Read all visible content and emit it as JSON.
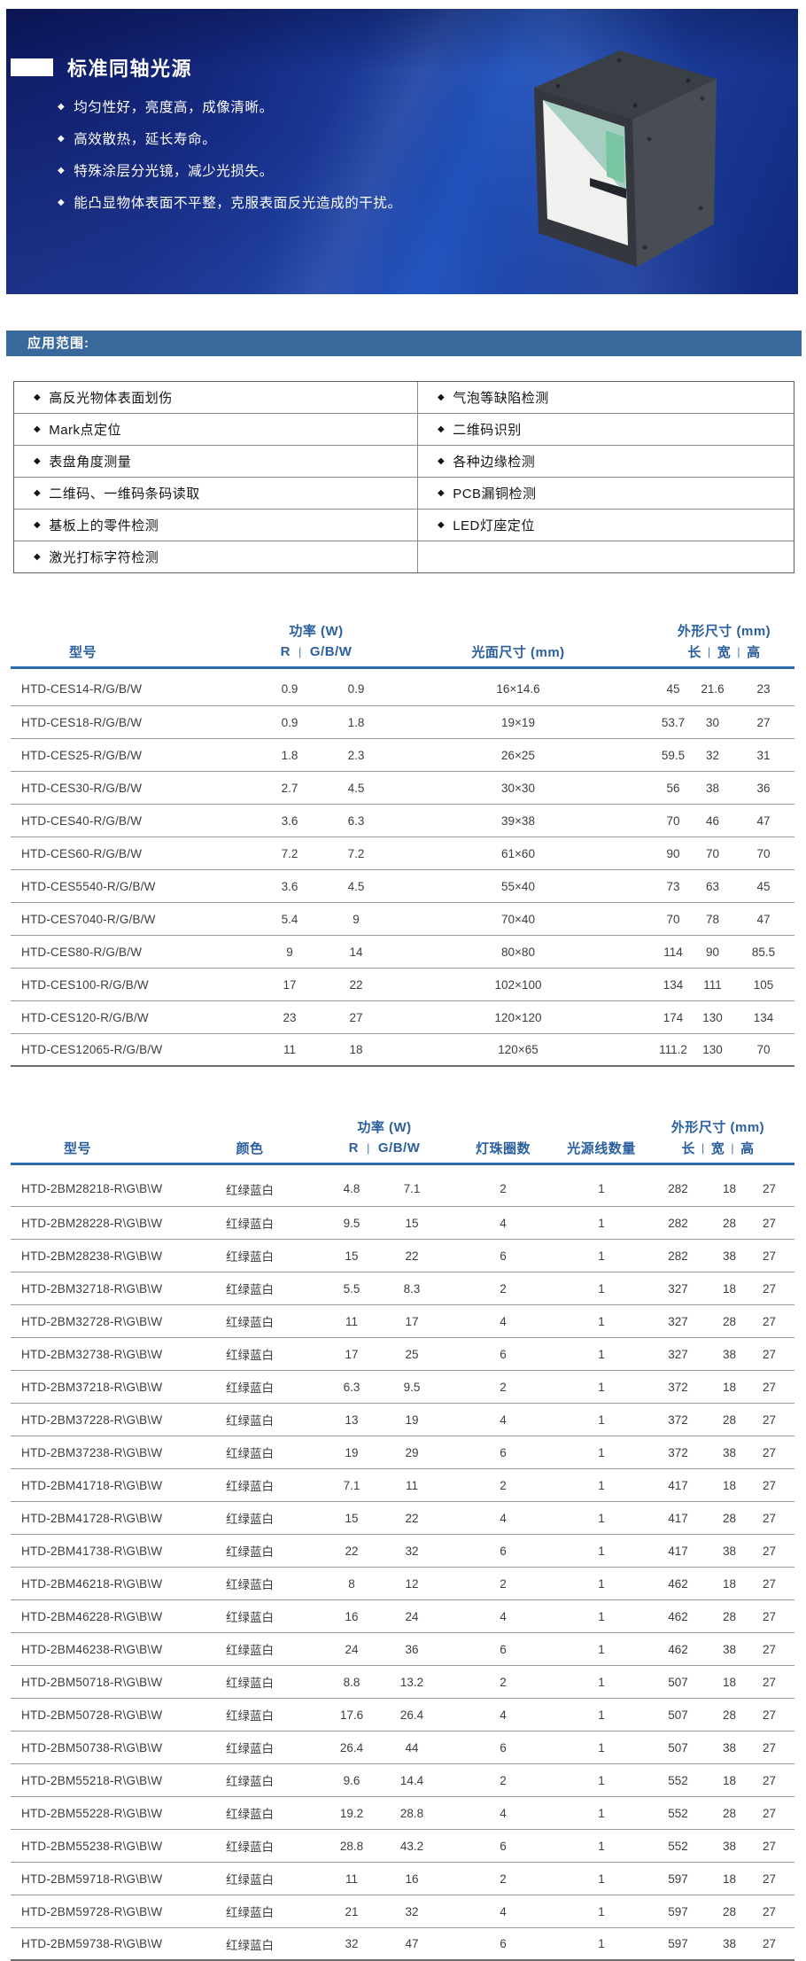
{
  "icons": {
    "bullet": "◆",
    "pipe": "|"
  },
  "colors": {
    "banner_deep": "#0e1a62",
    "banner_bright": "#2052bb",
    "section_bar": "#39689a",
    "table_header_text": "#2b5f9e",
    "header_rule": "#2c6cae"
  },
  "banner": {
    "title": "标准同轴光源",
    "bullets": [
      "均匀性好，亮度高，成像清晰。",
      "高效散热，延长寿命。",
      "特殊涂层分光镜，减少光损失。",
      "能凸显物体表面不平整，克服表面反光造成的干扰。"
    ],
    "product_image": "coaxial-light-cube"
  },
  "app_section": {
    "header": "应用范围:",
    "rows": [
      [
        "高反光物体表面划伤",
        "气泡等缺陷检测"
      ],
      [
        "Mark点定位",
        "二维码识别"
      ],
      [
        "表盘角度测量",
        "各种边缘检测"
      ],
      [
        "二维码、一维码条码读取",
        "PCB漏铜检测"
      ],
      [
        "基板上的零件检测",
        "LED灯座定位"
      ],
      [
        "激光打标字符检测",
        ""
      ]
    ]
  },
  "table1": {
    "headers": {
      "model": "型号",
      "power_group": "功率 (W)",
      "r": "R",
      "gbw": "G/B/W",
      "face": "光面尺寸 (mm)",
      "dim_group": "外形尺寸 (mm)",
      "len": "长",
      "wid": "宽",
      "hei": "高"
    },
    "rows": [
      [
        "HTD-CES14-R/G/B/W",
        "0.9",
        "0.9",
        "16×14.6",
        "45",
        "21.6",
        "23"
      ],
      [
        "HTD-CES18-R/G/B/W",
        "0.9",
        "1.8",
        "19×19",
        "53.7",
        "30",
        "27"
      ],
      [
        "HTD-CES25-R/G/B/W",
        "1.8",
        "2.3",
        "26×25",
        "59.5",
        "32",
        "31"
      ],
      [
        "HTD-CES30-R/G/B/W",
        "2.7",
        "4.5",
        "30×30",
        "56",
        "38",
        "36"
      ],
      [
        "HTD-CES40-R/G/B/W",
        "3.6",
        "6.3",
        "39×38",
        "70",
        "46",
        "47"
      ],
      [
        "HTD-CES60-R/G/B/W",
        "7.2",
        "7.2",
        "61×60",
        "90",
        "70",
        "70"
      ],
      [
        "HTD-CES5540-R/G/B/W",
        "3.6",
        "4.5",
        "55×40",
        "73",
        "63",
        "45"
      ],
      [
        "HTD-CES7040-R/G/B/W",
        "5.4",
        "9",
        "70×40",
        "70",
        "78",
        "47"
      ],
      [
        "HTD-CES80-R/G/B/W",
        "9",
        "14",
        "80×80",
        "114",
        "90",
        "85.5"
      ],
      [
        "HTD-CES100-R/G/B/W",
        "17",
        "22",
        "102×100",
        "134",
        "111",
        "105"
      ],
      [
        "HTD-CES120-R/G/B/W",
        "23",
        "27",
        "120×120",
        "174",
        "130",
        "134"
      ],
      [
        "HTD-CES12065-R/G/B/W",
        "11",
        "18",
        "120×65",
        "111.2",
        "130",
        "70"
      ]
    ]
  },
  "table2": {
    "headers": {
      "model": "型号",
      "color": "颜色",
      "power_group": "功率 (W)",
      "r": "R",
      "gbw": "G/B/W",
      "beads": "灯珠圈数",
      "lines": "光源线数量",
      "dim_group": "外形尺寸 (mm)",
      "len": "长",
      "wid": "宽",
      "hei": "高"
    },
    "rows": [
      [
        "HTD-2BM28218-R\\G\\B\\W",
        "红绿蓝白",
        "4.8",
        "7.1",
        "2",
        "1",
        "282",
        "18",
        "27"
      ],
      [
        "HTD-2BM28228-R\\G\\B\\W",
        "红绿蓝白",
        "9.5",
        "15",
        "4",
        "1",
        "282",
        "28",
        "27"
      ],
      [
        "HTD-2BM28238-R\\G\\B\\W",
        "红绿蓝白",
        "15",
        "22",
        "6",
        "1",
        "282",
        "38",
        "27"
      ],
      [
        "HTD-2BM32718-R\\G\\B\\W",
        "红绿蓝白",
        "5.5",
        "8.3",
        "2",
        "1",
        "327",
        "18",
        "27"
      ],
      [
        "HTD-2BM32728-R\\G\\B\\W",
        "红绿蓝白",
        "11",
        "17",
        "4",
        "1",
        "327",
        "28",
        "27"
      ],
      [
        "HTD-2BM32738-R\\G\\B\\W",
        "红绿蓝白",
        "17",
        "25",
        "6",
        "1",
        "327",
        "38",
        "27"
      ],
      [
        "HTD-2BM37218-R\\G\\B\\W",
        "红绿蓝白",
        "6.3",
        "9.5",
        "2",
        "1",
        "372",
        "18",
        "27"
      ],
      [
        "HTD-2BM37228-R\\G\\B\\W",
        "红绿蓝白",
        "13",
        "19",
        "4",
        "1",
        "372",
        "28",
        "27"
      ],
      [
        "HTD-2BM37238-R\\G\\B\\W",
        "红绿蓝白",
        "19",
        "29",
        "6",
        "1",
        "372",
        "38",
        "27"
      ],
      [
        "HTD-2BM41718-R\\G\\B\\W",
        "红绿蓝白",
        "7.1",
        "11",
        "2",
        "1",
        "417",
        "18",
        "27"
      ],
      [
        "HTD-2BM41728-R\\G\\B\\W",
        "红绿蓝白",
        "15",
        "22",
        "4",
        "1",
        "417",
        "28",
        "27"
      ],
      [
        "HTD-2BM41738-R\\G\\B\\W",
        "红绿蓝白",
        "22",
        "32",
        "6",
        "1",
        "417",
        "38",
        "27"
      ],
      [
        "HTD-2BM46218-R\\G\\B\\W",
        "红绿蓝白",
        "8",
        "12",
        "2",
        "1",
        "462",
        "18",
        "27"
      ],
      [
        "HTD-2BM46228-R\\G\\B\\W",
        "红绿蓝白",
        "16",
        "24",
        "4",
        "1",
        "462",
        "28",
        "27"
      ],
      [
        "HTD-2BM46238-R\\G\\B\\W",
        "红绿蓝白",
        "24",
        "36",
        "6",
        "1",
        "462",
        "38",
        "27"
      ],
      [
        "HTD-2BM50718-R\\G\\B\\W",
        "红绿蓝白",
        "8.8",
        "13.2",
        "2",
        "1",
        "507",
        "18",
        "27"
      ],
      [
        "HTD-2BM50728-R\\G\\B\\W",
        "红绿蓝白",
        "17.6",
        "26.4",
        "4",
        "1",
        "507",
        "28",
        "27"
      ],
      [
        "HTD-2BM50738-R\\G\\B\\W",
        "红绿蓝白",
        "26.4",
        "44",
        "6",
        "1",
        "507",
        "38",
        "27"
      ],
      [
        "HTD-2BM55218-R\\G\\B\\W",
        "红绿蓝白",
        "9.6",
        "14.4",
        "2",
        "1",
        "552",
        "18",
        "27"
      ],
      [
        "HTD-2BM55228-R\\G\\B\\W",
        "红绿蓝白",
        "19.2",
        "28.8",
        "4",
        "1",
        "552",
        "28",
        "27"
      ],
      [
        "HTD-2BM55238-R\\G\\B\\W",
        "红绿蓝白",
        "28.8",
        "43.2",
        "6",
        "1",
        "552",
        "38",
        "27"
      ],
      [
        "HTD-2BM59718-R\\G\\B\\W",
        "红绿蓝白",
        "11",
        "16",
        "2",
        "1",
        "597",
        "18",
        "27"
      ],
      [
        "HTD-2BM59728-R\\G\\B\\W",
        "红绿蓝白",
        "21",
        "32",
        "4",
        "1",
        "597",
        "28",
        "27"
      ],
      [
        "HTD-2BM59738-R\\G\\B\\W",
        "红绿蓝白",
        "32",
        "47",
        "6",
        "1",
        "597",
        "38",
        "27"
      ]
    ]
  }
}
